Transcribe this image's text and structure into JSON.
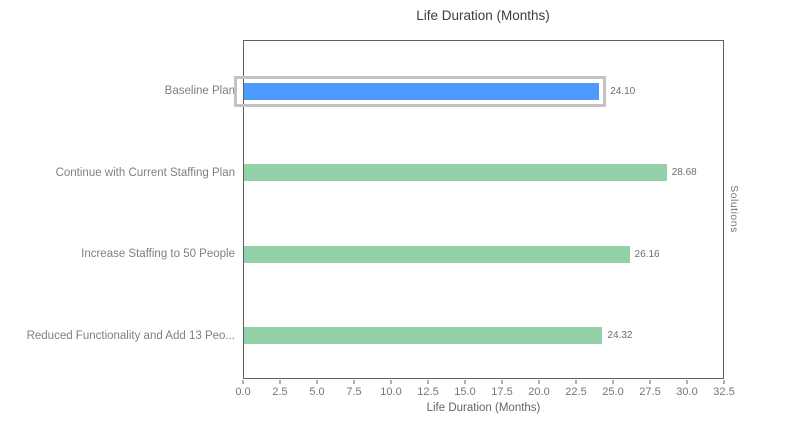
{
  "title": "Life Duration (Months)",
  "chart_data": {
    "type": "bar",
    "orientation": "horizontal",
    "title": "Life Duration (Months)",
    "xlabel": "Life Duration (Months)",
    "ylabel": "Solutions",
    "categories": [
      "Baseline Plan",
      "Continue with Current Staffing Plan",
      "Increase Staffing to 50 People",
      "Reduced Functionality and Add 13 Peo..."
    ],
    "values": [
      24.1,
      28.68,
      26.16,
      24.32
    ],
    "value_labels": [
      "24.10",
      "28.68",
      "26.16",
      "24.32"
    ],
    "selected_index": 0,
    "bar_colors": [
      "#4d9aff",
      "#93d2a8",
      "#93d2a8",
      "#93d2a8"
    ],
    "xlim": [
      0,
      32.5
    ],
    "xticks": [
      "0.0",
      "2.5",
      "5.0",
      "7.5",
      "10.0",
      "12.5",
      "15.0",
      "17.5",
      "20.0",
      "22.5",
      "25.0",
      "27.5",
      "30.0",
      "32.5"
    ],
    "grid": false,
    "legend": "none"
  },
  "colors": {
    "selected_bar": "#4d9aff",
    "bar": "#93d2a8",
    "selection_outline": "#c3c3c3",
    "plot_border": "#5f5f5f",
    "label_text": "#808080",
    "tick_text": "#757575",
    "title_text": "#3d3d3d"
  }
}
